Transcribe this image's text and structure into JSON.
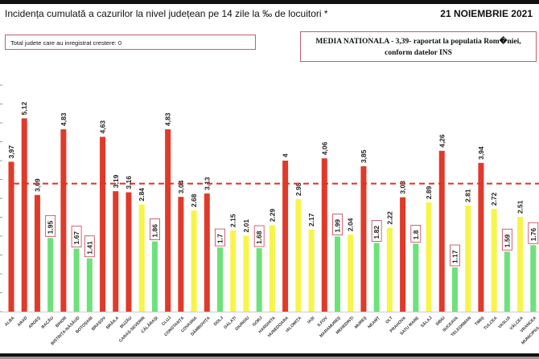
{
  "header": {
    "title": "Incidența cumulată a cazurilor la nivel județean pe 14 zile la ‰ de locuitori *",
    "date": "21 NOIEMBRIE 2021",
    "increase_note": "Total judete care au inregistrat crestere: 0",
    "national_average_line1": "MEDIA NATIONALA - 3,39-  raportat la populatia Rom�niei,",
    "national_average_line2": "conform datelor INS"
  },
  "chart_data": {
    "type": "bar",
    "title": "Incidența cumulată a cazurilor la nivel județean pe 14 zile la ‰ de locuitori *",
    "categories": [
      "ALBA",
      "ARAD",
      "ARGEȘ",
      "BACĂU",
      "BIHOR",
      "BISTRIȚA-NĂSĂUD",
      "BOTOȘANI",
      "BRAȘOV",
      "BRĂILA",
      "BUZĂU",
      "CARAȘ-SEVERIN",
      "CĂLĂRAȘI",
      "CLUJ",
      "CONSTANȚA",
      "COVASNA",
      "DÂMBOVIȚA",
      "DOLJ",
      "GALAȚI",
      "GIURGIU",
      "GORJ",
      "HARGHITA",
      "HUNEDOARA",
      "IALOMIȚA",
      "IAȘI",
      "ILFOV",
      "MARAMUREȘ",
      "MEHEDINȚI",
      "MUREȘ",
      "NEAMȚ",
      "OLT",
      "PRAHOVA",
      "SATU MARE",
      "SĂLAJ",
      "SIBIU",
      "SUCEAVA",
      "TELEORMAN",
      "TIMIȘ",
      "TULCEA",
      "VASLUI",
      "VÂLCEA",
      "VRANCEA",
      "MUNICIPIUL BUCU"
    ],
    "values": [
      3.97,
      5.12,
      3.09,
      1.95,
      4.83,
      1.67,
      1.41,
      4.63,
      3.19,
      3.16,
      2.84,
      1.86,
      4.83,
      3.04,
      2.68,
      3.13,
      1.7,
      2.15,
      2.01,
      1.68,
      2.29,
      4,
      2.98,
      2.17,
      4.06,
      1.99,
      2.04,
      3.85,
      1.82,
      2.22,
      3.03,
      1.8,
      2.89,
      4.26,
      1.17,
      2.81,
      3.94,
      2.72,
      1.59,
      2.51,
      1.76,
      null
    ],
    "value_labels": [
      "3,97",
      "5,12",
      "3,09",
      "1.95",
      "4,83",
      "1.67",
      "1.41",
      "4,63",
      "3,19",
      "3,16",
      "2.84",
      "1.86",
      "4,83",
      "3,04",
      "2.68",
      "3,13",
      "1.7",
      "2.15",
      "2.01",
      "1.68",
      "2.29",
      "4",
      "2.98",
      "2.17",
      "4,06",
      "1.99",
      "2.04",
      "3,85",
      "1.82",
      "2.22",
      "3,03",
      "1.8",
      "2.89",
      "4,26",
      "1.17",
      "2.81",
      "3,94",
      "2.72",
      "1.59",
      "2.51",
      "1.76",
      ""
    ],
    "levels": [
      "red",
      "red",
      "red",
      "green",
      "red",
      "green",
      "green",
      "red",
      "red",
      "red",
      "yellow",
      "green",
      "red",
      "red",
      "yellow",
      "red",
      "green",
      "yellow",
      "yellow",
      "green",
      "yellow",
      "red",
      "yellow",
      "yellow",
      "red",
      "green",
      "yellow",
      "red",
      "green",
      "yellow",
      "red",
      "green",
      "yellow",
      "red",
      "green",
      "yellow",
      "red",
      "yellow",
      "green",
      "yellow",
      "green",
      ""
    ],
    "reference_line": {
      "value": 3.39,
      "style": "dashed",
      "color": "#e03020"
    },
    "ylim": [
      0,
      6
    ],
    "grid": false,
    "colors": {
      "red": "#e03a2a",
      "yellow": "#f7f54a",
      "green": "#6de27a",
      "label_box": "#c04050"
    }
  }
}
